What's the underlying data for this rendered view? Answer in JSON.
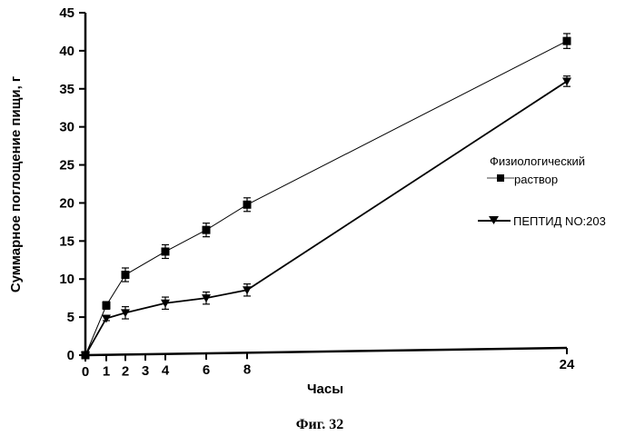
{
  "chart_data": {
    "type": "line",
    "title": "",
    "xlabel": "Часы",
    "ylabel": "Суммарное поглощение пищи, г",
    "x": [
      0,
      1,
      2,
      4,
      6,
      8,
      24
    ],
    "xticks": [
      0,
      1,
      2,
      3,
      4,
      6,
      8,
      24
    ],
    "yticks": [
      0,
      5,
      10,
      15,
      20,
      25,
      30,
      35,
      40,
      45
    ],
    "ylim": [
      0,
      45
    ],
    "grid": false,
    "legend_placement": "right",
    "series": [
      {
        "name": "Физиологический раствор",
        "marker": "square",
        "values": [
          0,
          6.5,
          10.5,
          13.5,
          16.3,
          19.6,
          41.2
        ],
        "errors": [
          0.2,
          0.5,
          0.9,
          0.9,
          0.9,
          0.9,
          1.0
        ]
      },
      {
        "name": "ПЕПТИД NO:203",
        "marker": "triangle-down",
        "values": [
          0,
          4.8,
          5.5,
          6.7,
          7.3,
          8.3,
          35.8
        ],
        "errors": [
          0.2,
          0.3,
          0.8,
          0.8,
          0.8,
          0.8,
          0.7
        ]
      }
    ],
    "legend": {
      "saline_line1": "Физиологический",
      "saline_line2": "раствор",
      "peptide": "ПЕПТИД NO:203"
    }
  },
  "caption": "Фиг. 32"
}
